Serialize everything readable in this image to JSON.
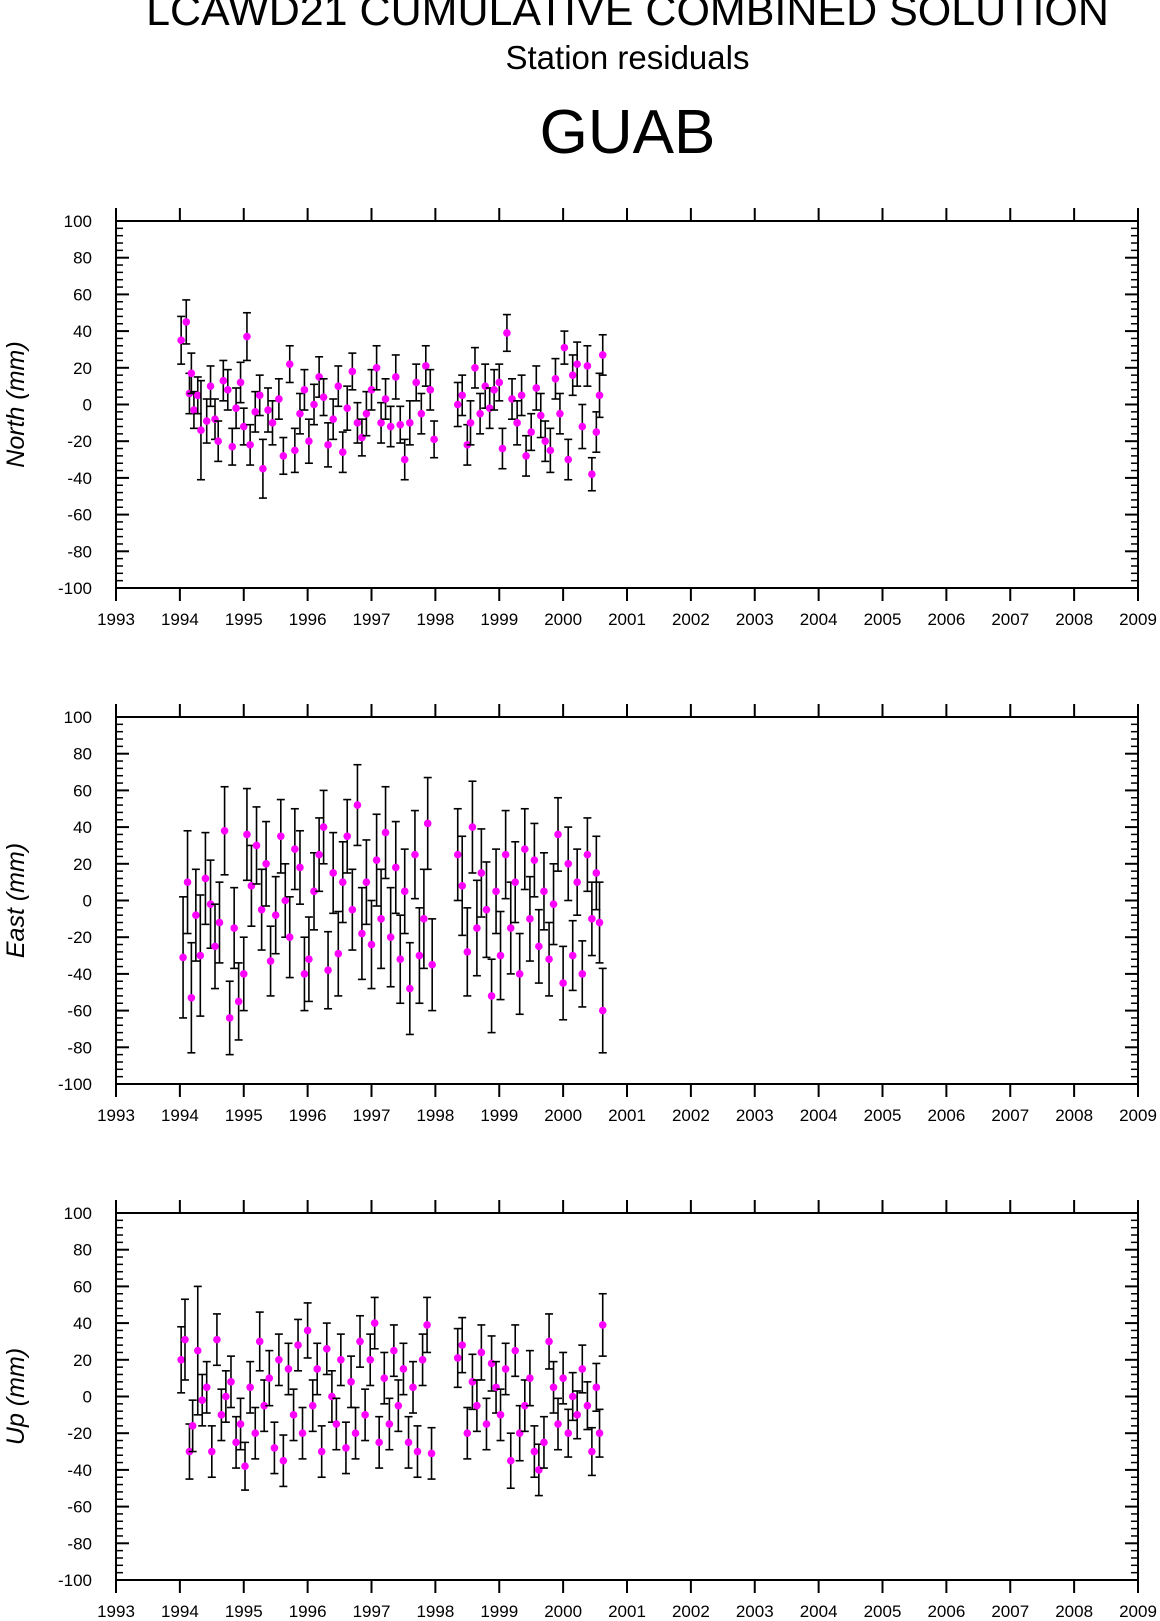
{
  "header": {
    "title": "LCAWD21 CUMULATIVE COMBINED SOLUTION",
    "subtitle": "Station residuals",
    "station": "GUAB"
  },
  "colors": {
    "marker": "#ff00ff",
    "errorbar": "#000000",
    "axis": "#000000"
  },
  "chart_data": [
    {
      "type": "scatter",
      "ylabel": "North (mm)",
      "xlim": [
        1993,
        2009
      ],
      "ylim": [
        -100,
        100
      ],
      "xticks": [
        "1993",
        "1994",
        "1995",
        "1996",
        "1997",
        "1998",
        "1999",
        "2000",
        "2001",
        "2002",
        "2003",
        "2004",
        "2005",
        "2006",
        "2007",
        "2008",
        "2009"
      ],
      "yticks": [
        "100",
        "80",
        "60",
        "40",
        "20",
        "0",
        "-20",
        "-40",
        "-60",
        "-80",
        "-100"
      ],
      "error_bars": true,
      "points": [
        [
          1994.02,
          35,
          13
        ],
        [
          1994.1,
          45,
          12
        ],
        [
          1994.15,
          6,
          11
        ],
        [
          1994.18,
          17,
          11
        ],
        [
          1994.22,
          -3,
          10
        ],
        [
          1994.28,
          5,
          10
        ],
        [
          1994.33,
          -14,
          27
        ],
        [
          1994.42,
          -9,
          12
        ],
        [
          1994.48,
          10,
          11
        ],
        [
          1994.55,
          -8,
          11
        ],
        [
          1994.6,
          -20,
          11
        ],
        [
          1994.68,
          13,
          11
        ],
        [
          1994.75,
          8,
          11
        ],
        [
          1994.82,
          -23,
          10
        ],
        [
          1994.88,
          -2,
          11
        ],
        [
          1994.95,
          12,
          11
        ],
        [
          1995.0,
          -12,
          10
        ],
        [
          1995.05,
          37,
          13
        ],
        [
          1995.1,
          -22,
          11
        ],
        [
          1995.18,
          -4,
          11
        ],
        [
          1995.25,
          5,
          11
        ],
        [
          1995.3,
          -35,
          16
        ],
        [
          1995.38,
          -3,
          12
        ],
        [
          1995.45,
          -10,
          12
        ],
        [
          1995.55,
          3,
          11
        ],
        [
          1995.62,
          -28,
          10
        ],
        [
          1995.72,
          22,
          10
        ],
        [
          1995.8,
          -25,
          12
        ],
        [
          1995.88,
          -5,
          11
        ],
        [
          1995.95,
          8,
          11
        ],
        [
          1996.02,
          -20,
          12
        ],
        [
          1996.1,
          0,
          11
        ],
        [
          1996.18,
          15,
          11
        ],
        [
          1996.25,
          4,
          10
        ],
        [
          1996.32,
          -22,
          12
        ],
        [
          1996.4,
          -8,
          11
        ],
        [
          1996.48,
          10,
          11
        ],
        [
          1996.55,
          -26,
          11
        ],
        [
          1996.62,
          -2,
          12
        ],
        [
          1996.7,
          18,
          10
        ],
        [
          1996.78,
          -10,
          11
        ],
        [
          1996.85,
          -18,
          10
        ],
        [
          1996.92,
          -5,
          12
        ],
        [
          1997.0,
          8,
          11
        ],
        [
          1997.08,
          20,
          12
        ],
        [
          1997.15,
          -10,
          11
        ],
        [
          1997.22,
          3,
          11
        ],
        [
          1997.3,
          -12,
          11
        ],
        [
          1997.38,
          15,
          12
        ],
        [
          1997.45,
          -11,
          10
        ],
        [
          1997.52,
          -30,
          11
        ],
        [
          1997.6,
          -10,
          12
        ],
        [
          1997.7,
          12,
          10
        ],
        [
          1997.78,
          -5,
          11
        ],
        [
          1997.85,
          21,
          11
        ],
        [
          1997.92,
          8,
          11
        ],
        [
          1997.98,
          -19,
          10
        ],
        [
          1998.35,
          0,
          12
        ],
        [
          1998.42,
          5,
          11
        ],
        [
          1998.5,
          -22,
          11
        ],
        [
          1998.55,
          -10,
          12
        ],
        [
          1998.62,
          20,
          11
        ],
        [
          1998.7,
          -5,
          11
        ],
        [
          1998.78,
          10,
          12
        ],
        [
          1998.85,
          -2,
          11
        ],
        [
          1998.92,
          8,
          11
        ],
        [
          1999.0,
          12,
          10
        ],
        [
          1999.05,
          -24,
          11
        ],
        [
          1999.12,
          39,
          10
        ],
        [
          1999.2,
          3,
          11
        ],
        [
          1999.28,
          -10,
          12
        ],
        [
          1999.35,
          5,
          11
        ],
        [
          1999.42,
          -28,
          11
        ],
        [
          1999.5,
          -15,
          10
        ],
        [
          1999.58,
          9,
          12
        ],
        [
          1999.65,
          -6,
          12
        ],
        [
          1999.72,
          -20,
          11
        ],
        [
          1999.8,
          -25,
          12
        ],
        [
          1999.88,
          14,
          11
        ],
        [
          1999.95,
          -5,
          11
        ],
        [
          2000.02,
          31,
          9
        ],
        [
          2000.08,
          -30,
          11
        ],
        [
          2000.15,
          16,
          11
        ],
        [
          2000.22,
          22,
          12
        ],
        [
          2000.3,
          -12,
          12
        ],
        [
          2000.38,
          21,
          11
        ],
        [
          2000.45,
          -38,
          9
        ],
        [
          2000.52,
          -15,
          11
        ],
        [
          2000.57,
          5,
          12
        ],
        [
          2000.62,
          27,
          11
        ]
      ]
    },
    {
      "type": "scatter",
      "ylabel": "East (mm)",
      "xlim": [
        1993,
        2009
      ],
      "ylim": [
        -100,
        100
      ],
      "xticks": [
        "1993",
        "1994",
        "1995",
        "1996",
        "1997",
        "1998",
        "1999",
        "2000",
        "2001",
        "2002",
        "2003",
        "2004",
        "2005",
        "2006",
        "2007",
        "2008",
        "2009"
      ],
      "yticks": [
        "100",
        "80",
        "60",
        "40",
        "20",
        "0",
        "-20",
        "-40",
        "-60",
        "-80",
        "-100"
      ],
      "error_bars": true,
      "points": [
        [
          1994.05,
          -31,
          33
        ],
        [
          1994.12,
          10,
          28
        ],
        [
          1994.18,
          -53,
          30
        ],
        [
          1994.25,
          -8,
          25
        ],
        [
          1994.32,
          -30,
          33
        ],
        [
          1994.4,
          12,
          25
        ],
        [
          1994.48,
          -2,
          24
        ],
        [
          1994.55,
          -25,
          23
        ],
        [
          1994.62,
          -12,
          22
        ],
        [
          1994.7,
          38,
          24
        ],
        [
          1994.78,
          -64,
          20
        ],
        [
          1994.85,
          -15,
          22
        ],
        [
          1994.92,
          -55,
          21
        ],
        [
          1995.0,
          -40,
          20
        ],
        [
          1995.05,
          36,
          25
        ],
        [
          1995.12,
          8,
          22
        ],
        [
          1995.2,
          30,
          21
        ],
        [
          1995.28,
          -5,
          22
        ],
        [
          1995.35,
          20,
          23
        ],
        [
          1995.42,
          -33,
          19
        ],
        [
          1995.5,
          -8,
          21
        ],
        [
          1995.58,
          35,
          20
        ],
        [
          1995.65,
          0,
          20
        ],
        [
          1995.72,
          -20,
          22
        ],
        [
          1995.8,
          28,
          22
        ],
        [
          1995.88,
          18,
          20
        ],
        [
          1995.95,
          -40,
          20
        ],
        [
          1996.02,
          -32,
          23
        ],
        [
          1996.1,
          5,
          21
        ],
        [
          1996.18,
          25,
          20
        ],
        [
          1996.25,
          40,
          20
        ],
        [
          1996.32,
          -38,
          21
        ],
        [
          1996.4,
          15,
          22
        ],
        [
          1996.48,
          -29,
          23
        ],
        [
          1996.55,
          10,
          22
        ],
        [
          1996.62,
          35,
          20
        ],
        [
          1996.7,
          -5,
          22
        ],
        [
          1996.78,
          52,
          22
        ],
        [
          1996.85,
          -18,
          25
        ],
        [
          1996.92,
          10,
          23
        ],
        [
          1997.0,
          -24,
          24
        ],
        [
          1997.08,
          22,
          25
        ],
        [
          1997.15,
          -10,
          27
        ],
        [
          1997.22,
          37,
          25
        ],
        [
          1997.3,
          -20,
          27
        ],
        [
          1997.38,
          18,
          25
        ],
        [
          1997.45,
          -32,
          24
        ],
        [
          1997.52,
          5,
          23
        ],
        [
          1997.6,
          -48,
          25
        ],
        [
          1997.68,
          25,
          24
        ],
        [
          1997.75,
          -30,
          26
        ],
        [
          1997.82,
          -10,
          27
        ],
        [
          1997.88,
          42,
          25
        ],
        [
          1997.95,
          -35,
          25
        ],
        [
          1998.35,
          25,
          25
        ],
        [
          1998.42,
          8,
          27
        ],
        [
          1998.5,
          -28,
          24
        ],
        [
          1998.58,
          40,
          25
        ],
        [
          1998.65,
          -15,
          26
        ],
        [
          1998.72,
          15,
          24
        ],
        [
          1998.8,
          -5,
          26
        ],
        [
          1998.88,
          -52,
          20
        ],
        [
          1998.95,
          5,
          23
        ],
        [
          1999.02,
          -30,
          24
        ],
        [
          1999.1,
          25,
          24
        ],
        [
          1999.18,
          -15,
          25
        ],
        [
          1999.25,
          10,
          22
        ],
        [
          1999.32,
          -40,
          22
        ],
        [
          1999.4,
          28,
          22
        ],
        [
          1999.48,
          -10,
          23
        ],
        [
          1999.55,
          22,
          20
        ],
        [
          1999.62,
          -25,
          20
        ],
        [
          1999.7,
          5,
          21
        ],
        [
          1999.78,
          -32,
          20
        ],
        [
          1999.85,
          -2,
          22
        ],
        [
          1999.92,
          36,
          20
        ],
        [
          2000.0,
          -45,
          20
        ],
        [
          2000.08,
          20,
          20
        ],
        [
          2000.15,
          -30,
          19
        ],
        [
          2000.22,
          10,
          18
        ],
        [
          2000.3,
          -40,
          18
        ],
        [
          2000.38,
          25,
          20
        ],
        [
          2000.45,
          -10,
          20
        ],
        [
          2000.52,
          15,
          20
        ],
        [
          2000.57,
          -12,
          22
        ],
        [
          2000.62,
          -60,
          23
        ]
      ]
    },
    {
      "type": "scatter",
      "ylabel": "Up (mm)",
      "xlim": [
        1993,
        2009
      ],
      "ylim": [
        -100,
        100
      ],
      "xticks": [
        "1993",
        "1994",
        "1995",
        "1996",
        "1997",
        "1998",
        "1999",
        "2000",
        "2001",
        "2002",
        "2003",
        "2004",
        "2005",
        "2006",
        "2007",
        "2008",
        "2009"
      ],
      "yticks": [
        "100",
        "80",
        "60",
        "40",
        "20",
        "0",
        "-20",
        "-40",
        "-60",
        "-80",
        "-100"
      ],
      "error_bars": true,
      "points": [
        [
          1994.02,
          20,
          18
        ],
        [
          1994.08,
          31,
          22
        ],
        [
          1994.15,
          -30,
          15
        ],
        [
          1994.2,
          -16,
          14
        ],
        [
          1994.28,
          25,
          35
        ],
        [
          1994.35,
          -2,
          14
        ],
        [
          1994.42,
          5,
          14
        ],
        [
          1994.5,
          -30,
          14
        ],
        [
          1994.58,
          31,
          14
        ],
        [
          1994.65,
          -10,
          14
        ],
        [
          1994.72,
          0,
          14
        ],
        [
          1994.8,
          8,
          14
        ],
        [
          1994.88,
          -25,
          14
        ],
        [
          1994.95,
          -15,
          14
        ],
        [
          1995.02,
          -38,
          13
        ],
        [
          1995.1,
          5,
          14
        ],
        [
          1995.18,
          -20,
          14
        ],
        [
          1995.25,
          30,
          16
        ],
        [
          1995.32,
          -5,
          14
        ],
        [
          1995.4,
          10,
          15
        ],
        [
          1995.48,
          -28,
          14
        ],
        [
          1995.55,
          20,
          14
        ],
        [
          1995.62,
          -35,
          14
        ],
        [
          1995.7,
          15,
          14
        ],
        [
          1995.78,
          -10,
          14
        ],
        [
          1995.85,
          28,
          14
        ],
        [
          1995.92,
          -20,
          14
        ],
        [
          1996.0,
          36,
          15
        ],
        [
          1996.08,
          -5,
          14
        ],
        [
          1996.15,
          15,
          14
        ],
        [
          1996.22,
          -30,
          14
        ],
        [
          1996.3,
          26,
          14
        ],
        [
          1996.38,
          0,
          14
        ],
        [
          1996.45,
          -15,
          14
        ],
        [
          1996.52,
          20,
          14
        ],
        [
          1996.6,
          -28,
          14
        ],
        [
          1996.68,
          8,
          14
        ],
        [
          1996.75,
          -20,
          14
        ],
        [
          1996.82,
          30,
          14
        ],
        [
          1996.9,
          -10,
          14
        ],
        [
          1996.98,
          20,
          14
        ],
        [
          1997.05,
          40,
          14
        ],
        [
          1997.12,
          -25,
          14
        ],
        [
          1997.2,
          10,
          14
        ],
        [
          1997.28,
          -15,
          14
        ],
        [
          1997.35,
          25,
          14
        ],
        [
          1997.42,
          -5,
          14
        ],
        [
          1997.5,
          15,
          14
        ],
        [
          1997.58,
          -25,
          14
        ],
        [
          1997.65,
          5,
          14
        ],
        [
          1997.72,
          -30,
          14
        ],
        [
          1997.8,
          20,
          14
        ],
        [
          1997.87,
          39,
          15
        ],
        [
          1997.94,
          -31,
          14
        ],
        [
          1998.35,
          21,
          16
        ],
        [
          1998.42,
          28,
          15
        ],
        [
          1998.5,
          -20,
          14
        ],
        [
          1998.58,
          8,
          15
        ],
        [
          1998.65,
          -5,
          14
        ],
        [
          1998.72,
          24,
          15
        ],
        [
          1998.8,
          -15,
          14
        ],
        [
          1998.88,
          18,
          15
        ],
        [
          1998.95,
          5,
          14
        ],
        [
          1999.02,
          -10,
          14
        ],
        [
          1999.1,
          15,
          14
        ],
        [
          1999.18,
          -35,
          15
        ],
        [
          1999.25,
          25,
          14
        ],
        [
          1999.32,
          -20,
          15
        ],
        [
          1999.4,
          -5,
          14
        ],
        [
          1999.48,
          10,
          15
        ],
        [
          1999.55,
          -30,
          14
        ],
        [
          1999.62,
          -40,
          14
        ],
        [
          1999.7,
          -25,
          14
        ],
        [
          1999.78,
          30,
          15
        ],
        [
          1999.85,
          5,
          14
        ],
        [
          1999.92,
          -15,
          14
        ],
        [
          2000.0,
          10,
          14
        ],
        [
          2000.08,
          -20,
          13
        ],
        [
          2000.15,
          0,
          13
        ],
        [
          2000.22,
          -10,
          13
        ],
        [
          2000.3,
          15,
          13
        ],
        [
          2000.38,
          -5,
          13
        ],
        [
          2000.45,
          -30,
          13
        ],
        [
          2000.52,
          5,
          13
        ],
        [
          2000.57,
          -20,
          13
        ],
        [
          2000.62,
          39,
          17
        ]
      ]
    }
  ]
}
